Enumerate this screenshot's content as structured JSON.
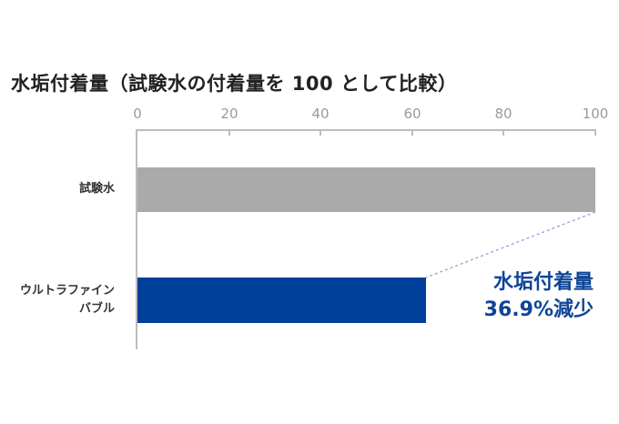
{
  "chart_data": {
    "type": "bar",
    "orientation": "horizontal",
    "title": "水垢付着量（試験水の付着量を 100 として比較）",
    "categories": [
      "試験水",
      "ウルトラファインバブル"
    ],
    "category_display": [
      [
        "試験水"
      ],
      [
        "ウルトラファイン",
        "バブル"
      ]
    ],
    "values": [
      100,
      63.1
    ],
    "colors": [
      "#aaaaaa",
      "#00409a"
    ],
    "xlabel": "",
    "ylabel": "",
    "xlim": [
      0,
      100
    ],
    "x_ticks": [
      "0",
      "20",
      "40",
      "60",
      "80",
      "100"
    ],
    "grid": false,
    "annotation": {
      "line1": "水垢付着量",
      "line2": "36.9%減少",
      "color": "#0f4496",
      "connector": "dashed line from end of 試験水 bar to end of ウルトラファインバブル bar"
    }
  },
  "axis": {
    "tick_color": "#9a9a9a",
    "line_color": "#bdbdbd"
  }
}
